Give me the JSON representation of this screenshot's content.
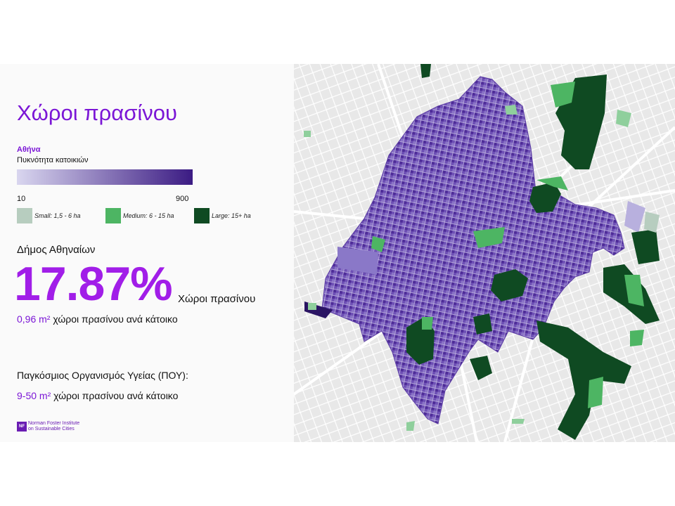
{
  "title": "Χώροι πρασίνου",
  "legend": {
    "city": "Αθήνα",
    "density_label": "Πυκνότητα κατοικιών",
    "min": "10",
    "max": "900",
    "ramp_colors": [
      "#d9d6ef",
      "#3b1b83"
    ],
    "sizes": [
      {
        "label": "Small: 1,5 - 6 ha",
        "color": "#b7cdbf"
      },
      {
        "label": "Medium: 6 - 15 ha",
        "color": "#4db563"
      },
      {
        "label": "Large: 15+ ha",
        "color": "#0f4a22"
      }
    ]
  },
  "stats": {
    "municipality": "Δήμος Αθηναίων",
    "percent": "17.87%",
    "percent_label": "Χώροι πρασίνου",
    "per_resident_value": "0,96 m²",
    "per_resident_text": " χώροι πρασίνου ανά κάτοικο",
    "who_title": "Παγκόσμιος Οργανισμός Υγείας (ΠΟΥ):",
    "who_value": "9-50 m²",
    "who_text": " χώροι πρασίνου ανά κάτοικο"
  },
  "logo": {
    "mark": "NF",
    "line1": "Norman Foster Institute",
    "line2": "on Sustainable Cities"
  },
  "map": {
    "background": "#e8e8e8",
    "road_color": "#ffffff",
    "district_color": "#6b4bb0"
  }
}
